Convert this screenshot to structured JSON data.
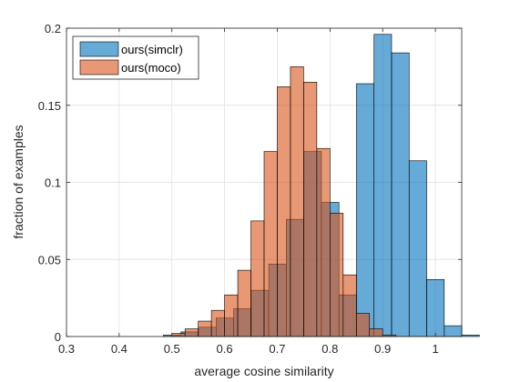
{
  "chart_data": {
    "type": "bar",
    "subtype": "overlapping-histogram",
    "title": "",
    "xlabel": "average cosine similarity",
    "ylabel": "fraction of examples",
    "xlim": [
      0.3,
      1.05
    ],
    "ylim": [
      0,
      0.2
    ],
    "xticks": [
      0.3,
      0.4,
      0.5,
      0.6,
      0.7,
      0.8,
      0.9,
      1
    ],
    "xtick_labels": [
      "0.3",
      "0.4",
      "0.5",
      "0.6",
      "0.7",
      "0.8",
      "0.9",
      "1"
    ],
    "yticks": [
      0,
      0.05,
      0.1,
      0.15,
      0.2
    ],
    "ytick_labels": [
      "0",
      "0.05",
      "0.1",
      "0.15",
      "0.2"
    ],
    "grid": true,
    "legend_position": "top-left",
    "series": [
      {
        "name": "ours(simclr)",
        "color": "#0072BD",
        "bin_width": 0.0333,
        "bin_start": 0.484,
        "values": [
          0.001,
          0.003,
          0.006,
          0.012,
          0.018,
          0.03,
          0.047,
          0.076,
          0.12,
          0.087,
          0.027,
          0.164,
          0.196,
          0.184,
          0.114,
          0.037,
          0.007,
          0.001
        ]
      },
      {
        "name": "ours(moco)",
        "color": "#D95319",
        "bin_width": 0.025,
        "bin_start": 0.5,
        "values": [
          0.002,
          0.005,
          0.01,
          0.017,
          0.027,
          0.043,
          0.075,
          0.12,
          0.162,
          0.175,
          0.165,
          0.122,
          0.08,
          0.04,
          0.015,
          0.005,
          0.001
        ]
      }
    ]
  }
}
